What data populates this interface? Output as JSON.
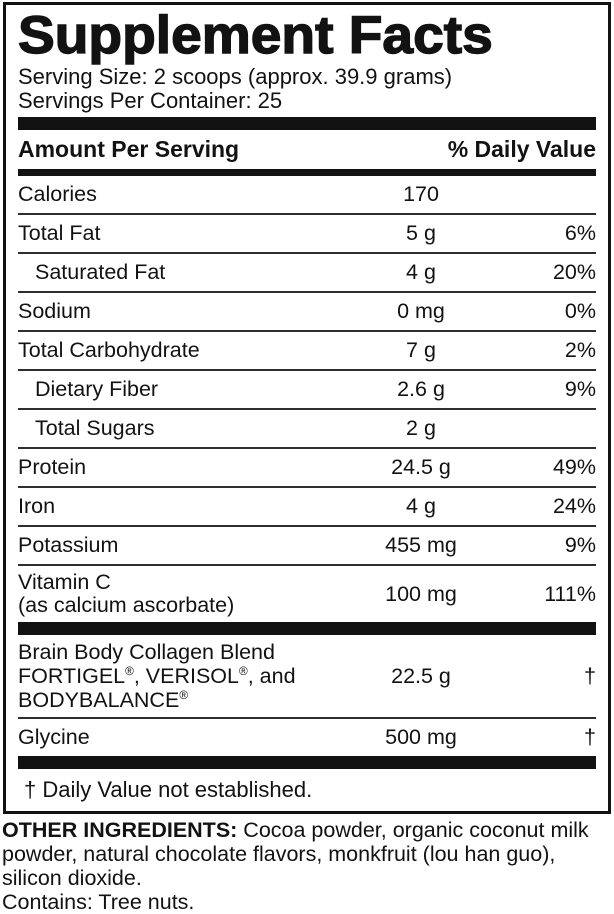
{
  "label": {
    "title": "Supplement Facts",
    "serving_size": "Serving Size: 2 scoops (approx. 39.9 grams)",
    "servings_per_container": "Servings Per Container: 25",
    "col_headers": {
      "left": "Amount Per Serving",
      "right": "% Daily Value"
    },
    "rows": [
      {
        "name": "Calories",
        "amount": "170",
        "dv": ""
      },
      {
        "name": "Total Fat",
        "amount": "5 g",
        "dv": "6%"
      },
      {
        "name": "Saturated Fat",
        "amount": "4 g",
        "dv": "20%",
        "indent": true
      },
      {
        "name": "Sodium",
        "amount": "0 mg",
        "dv": "0%"
      },
      {
        "name": "Total Carbohydrate",
        "amount": "7 g",
        "dv": "2%"
      },
      {
        "name": "Dietary Fiber",
        "amount": "2.6 g",
        "dv": "9%",
        "indent": true
      },
      {
        "name": "Total Sugars",
        "amount": "2 g",
        "dv": "",
        "indent": true
      },
      {
        "name": "Protein",
        "amount": "24.5 g",
        "dv": "49%"
      },
      {
        "name": "Iron",
        "amount": "4 g",
        "dv": "24%"
      },
      {
        "name": "Potassium",
        "amount": "455 mg",
        "dv": "9%"
      },
      {
        "name_line1": "Vitamin C",
        "name_line2": "(as calcium ascorbate)",
        "amount": "100 mg",
        "dv": "111%"
      }
    ],
    "blend_rows": [
      {
        "name_line1": "Brain Body Collagen Blend",
        "name_line2": "FORTIGEL®, VERISOL®, and",
        "name_line3": "BODYBALANCE®",
        "amount": "22.5 g",
        "dv": "†"
      },
      {
        "name": "Glycine",
        "amount": "500 mg",
        "dv": "†"
      }
    ],
    "footnote": "† Daily Value not established."
  },
  "footer": {
    "other_ingredients_label": "OTHER INGREDIENTS:",
    "other_ingredients_text": " Cocoa powder, organic coconut milk powder, natural chocolate flavors, monkfruit (lou han guo), silicon dioxide.",
    "contains": "Contains: Tree nuts."
  },
  "colors": {
    "text": "#121212",
    "rule": "#2e2e2e",
    "bar": "#121212",
    "background": "#ffffff"
  }
}
